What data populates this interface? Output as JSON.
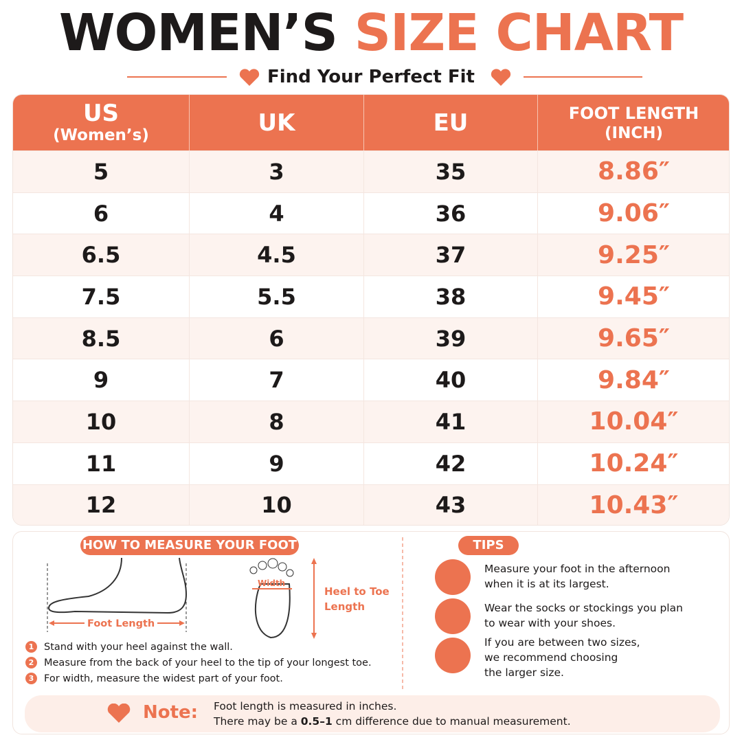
{
  "header": {
    "title_dark": "WOMEN’S",
    "title_accent": "SIZE CHART",
    "subtitle": "Find Your Perfect Fit"
  },
  "table": {
    "headers": [
      [
        "US",
        "(Women’s)"
      ],
      [
        "UK"
      ],
      [
        "EU"
      ],
      [
        "FOOT LENGTH",
        "(INCH)"
      ]
    ],
    "rows": [
      [
        "5",
        "3",
        "35",
        "8.86″"
      ],
      [
        "6",
        "4",
        "36",
        "9.06″"
      ],
      [
        "6.5",
        "4.5",
        "37",
        "9.25″"
      ],
      [
        "7.5",
        "5.5",
        "38",
        "9.45″"
      ],
      [
        "8.5",
        "6",
        "39",
        "9.65″"
      ],
      [
        "9",
        "7",
        "40",
        "9.84″"
      ],
      [
        "10",
        "8",
        "41",
        "10.04″"
      ],
      [
        "11",
        "9",
        "42",
        "10.24″"
      ],
      [
        "12",
        "10",
        "43",
        "10.43″"
      ]
    ]
  },
  "measure": {
    "title": "HOW TO MEASURE YOUR FOOT",
    "foot_length": "Foot Length",
    "width": "Width",
    "heel_to_toe": [
      "Heel to Toe",
      "Length"
    ],
    "steps": [
      {
        "num": "1",
        "text": "Stand with your heel against the wall."
      },
      {
        "num": "2",
        "text": "Measure from the back of your heel to the tip of your longest toe."
      },
      {
        "num": "3",
        "text": "For width, measure the widest part of your foot."
      }
    ]
  },
  "tips": {
    "title": "TIPS",
    "items": [
      [
        "Measure your foot in the afternoon",
        "when it is at its largest."
      ],
      [
        "Wear the socks or stockings you plan",
        "to wear with your shoes."
      ],
      [
        "If you are between two sizes,",
        "we recommend choosing",
        "the larger size."
      ]
    ]
  },
  "note": {
    "label": "Note:",
    "line1": "Foot length is measured in inches.",
    "line2": [
      "There may be a ",
      "0.5–1",
      " cm difference due to manual measurement."
    ]
  }
}
